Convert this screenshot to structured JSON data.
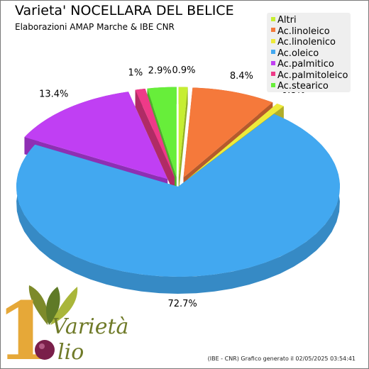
{
  "header": {
    "title": "Varieta' NOCELLARA DEL BELICE",
    "subtitle": "Elaborazioni AMAP Marche & IBE CNR"
  },
  "chart_data": {
    "type": "pie",
    "style": "3d-exploded",
    "series": [
      {
        "name": "Altri",
        "value": 0.9,
        "label": "0.9%",
        "color": "#c6ee32"
      },
      {
        "name": "Ac.linoleico",
        "value": 8.4,
        "label": "8.4%",
        "color": "#f5793b"
      },
      {
        "name": "Ac.linolenico",
        "value": 0.8,
        "label": "0.8%",
        "color": "#eeea3a"
      },
      {
        "name": "Ac.oleico",
        "value": 72.7,
        "label": "72.7%",
        "color": "#42a8f0"
      },
      {
        "name": "Ac.palmitico",
        "value": 13.4,
        "label": "13.4%",
        "color": "#c03ff3"
      },
      {
        "name": "Ac.palmitoleico",
        "value": 1.0,
        "label": "1%",
        "color": "#ee3a88"
      },
      {
        "name": "Ac.stearico",
        "value": 2.9,
        "label": "2.9%",
        "color": "#67ee3a"
      }
    ],
    "legend_position": "top-right"
  },
  "footer": {
    "text": "(IBE - CNR)  Grafico generato il 02/05/2025 03:54:41"
  },
  "logo": {
    "line1": "Varietà",
    "line2": "lio",
    "numeral": "1"
  }
}
